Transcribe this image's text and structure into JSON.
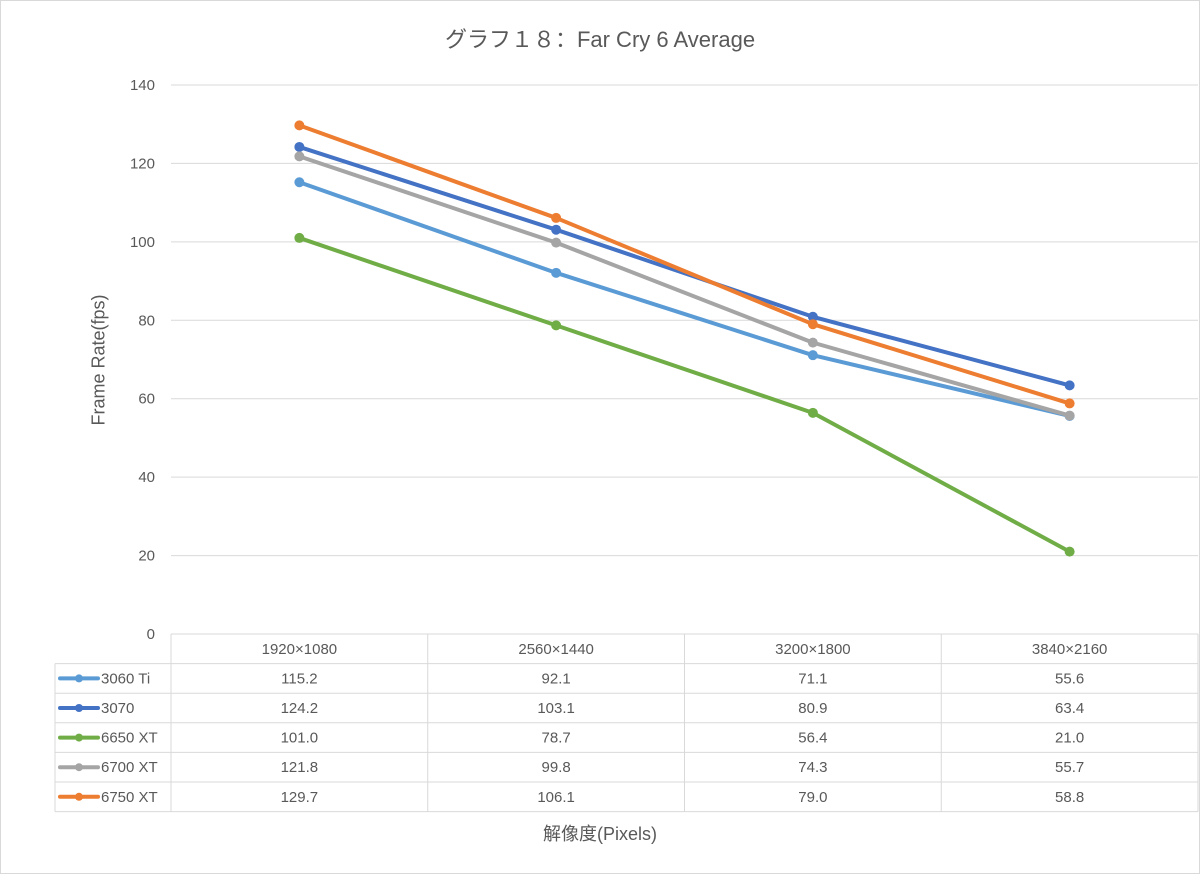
{
  "chart_data": {
    "type": "line",
    "title": "グラフ１８：Far Cry 6 Average",
    "xlabel": "解像度(Pixels)",
    "ylabel": "Frame Rate(fps)",
    "categories": [
      "1920×1080",
      "2560×1440",
      "3200×1800",
      "3840×2160"
    ],
    "ylim": [
      0,
      140
    ],
    "yticks": [
      "0",
      "20",
      "40",
      "60",
      "80",
      "100",
      "120",
      "140"
    ],
    "grid": true,
    "legend": "data-table",
    "series": [
      {
        "name": "3060 Ti",
        "color": "#5b9bd5",
        "values": [
          115.2,
          92.1,
          71.1,
          55.6
        ],
        "labels": [
          "115.2",
          "92.1",
          "71.1",
          "55.6"
        ]
      },
      {
        "name": "3070",
        "color": "#4472c4",
        "values": [
          124.2,
          103.1,
          80.9,
          63.4
        ],
        "labels": [
          "124.2",
          "103.1",
          "80.9",
          "63.4"
        ]
      },
      {
        "name": "6650 XT",
        "color": "#70ad47",
        "values": [
          101.0,
          78.7,
          56.4,
          21.0
        ],
        "labels": [
          "101.0",
          "78.7",
          "56.4",
          "21.0"
        ]
      },
      {
        "name": "6700 XT",
        "color": "#a5a5a5",
        "values": [
          121.8,
          99.8,
          74.3,
          55.7
        ],
        "labels": [
          "121.8",
          "99.8",
          "74.3",
          "55.7"
        ]
      },
      {
        "name": "6750 XT",
        "color": "#ed7d31",
        "values": [
          129.7,
          106.1,
          79.0,
          58.8
        ],
        "labels": [
          "129.7",
          "106.1",
          "79.0",
          "58.8"
        ]
      }
    ]
  }
}
